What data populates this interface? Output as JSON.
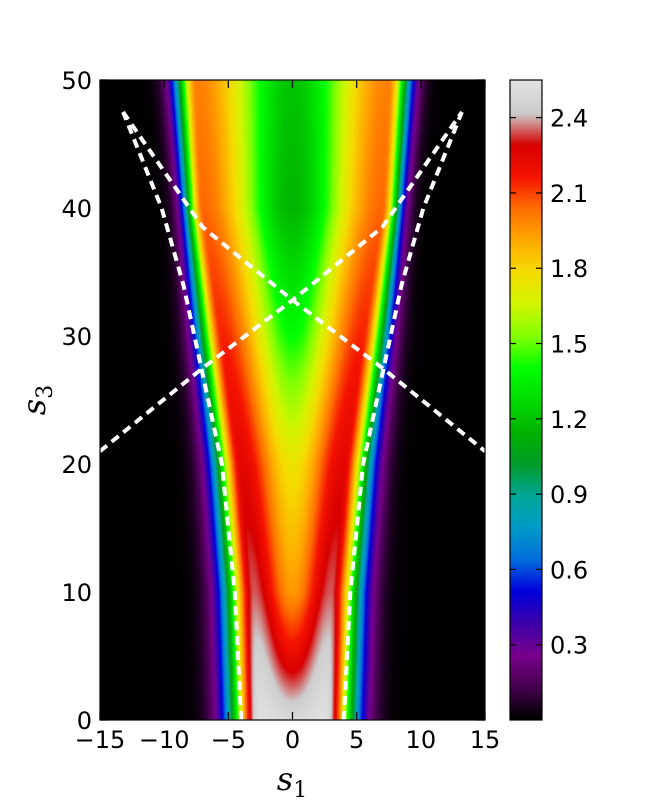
{
  "chart_data": {
    "type": "heatmap",
    "title": "",
    "xlabel": {
      "base": "s",
      "sub": "1"
    },
    "ylabel": {
      "base": "s",
      "sub": "3"
    },
    "xlim": [
      -15,
      15
    ],
    "ylim": [
      0,
      50
    ],
    "xticks": [
      -15,
      -10,
      -5,
      0,
      5,
      10,
      15
    ],
    "xtick_labels": [
      "−15",
      "−10",
      "−5",
      "0",
      "5",
      "10",
      "15"
    ],
    "yticks": [
      0,
      10,
      20,
      30,
      40,
      50
    ],
    "ytick_labels": [
      "0",
      "10",
      "20",
      "30",
      "40",
      "50"
    ],
    "colormap": "nipy_spectral",
    "colorbar": {
      "range": [
        0.0,
        2.55
      ],
      "ticks": [
        0.3,
        0.6,
        0.9,
        1.2,
        1.5,
        1.8,
        2.1,
        2.4
      ],
      "tick_labels": [
        "0.3",
        "0.6",
        "0.9",
        "1.2",
        "1.5",
        "1.8",
        "2.1",
        "2.4"
      ],
      "placement": "right"
    },
    "field_description": "Symmetric intensity in s1; narrow red/white peak near s1=±2.5 at small s3 that merges into a broad red/yellow core and widens with s3; green center at large s3.",
    "field_samples": {
      "s3": [
        0,
        10,
        20,
        30,
        40,
        50
      ],
      "center_value": [
        2.5,
        1.95,
        1.75,
        1.4,
        1.15,
        1.2
      ],
      "peak_value": [
        2.55,
        2.35,
        2.25,
        2.15,
        2.05,
        2.0
      ],
      "peak_s1": [
        2.5,
        3.0,
        4.0,
        5.5,
        7.0,
        7.5
      ],
      "half_width": [
        5.2,
        5.6,
        6.4,
        7.6,
        8.6,
        9.4
      ]
    },
    "overlay_curves": [
      {
        "style": "white-dashed",
        "points": [
          [
            -4,
            0
          ],
          [
            -4.5,
            10
          ],
          [
            -5.5,
            20
          ],
          [
            -7,
            27
          ],
          [
            -8.5,
            34
          ],
          [
            -10.2,
            40
          ],
          [
            -13.2,
            47.5
          ]
        ]
      },
      {
        "style": "white-dashed",
        "points": [
          [
            4,
            0
          ],
          [
            4.5,
            10
          ],
          [
            5.5,
            20
          ],
          [
            7,
            27
          ],
          [
            8.5,
            34
          ],
          [
            10.2,
            40
          ],
          [
            13.2,
            47.5
          ]
        ]
      },
      {
        "style": "white-dashed",
        "points": [
          [
            -15,
            21
          ],
          [
            -7,
            27.5
          ],
          [
            0,
            32.8
          ],
          [
            7,
            38.5
          ],
          [
            13.2,
            47.5
          ]
        ]
      },
      {
        "style": "white-dashed",
        "points": [
          [
            -13.2,
            47.5
          ],
          [
            -7,
            38.5
          ],
          [
            0,
            32.8
          ],
          [
            7,
            27.5
          ],
          [
            15,
            21
          ]
        ]
      }
    ]
  }
}
